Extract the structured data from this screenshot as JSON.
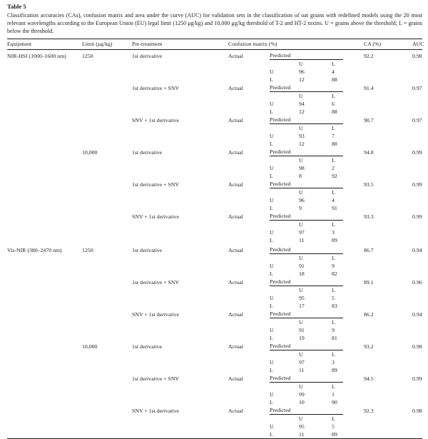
{
  "table": {
    "label": "Table 5",
    "caption": "Classification accuracies (CAs), confusion matrix and area under the curve (AUC) for validation sets in the classification of oat grains with redefined models using the 20 most relevant wavelengths according to the European Union (EU) legal limit (1250 μg/kg) and 10,000 μg/kg threshold of T-2 and HT-2 toxins. U = grains above the threshold; L = grains below the threshold.",
    "headers": {
      "equipment": "Equipment",
      "limit": "Limit (μg/kg)",
      "pretreatment": "Pre-treatment",
      "confusion": "Confusion matrix (%)",
      "ca": "CA (%)",
      "auc": "AUC"
    },
    "actual_label": "Actual",
    "predicted_label": "Predicted",
    "class_labels": [
      "U",
      "L"
    ],
    "blocks": [
      {
        "equipment": "NIR-HSI (1000–1600 nm)",
        "limit": "1250",
        "pretreatment": "1st derivative",
        "matrix": [
          [
            96,
            4
          ],
          [
            12,
            88
          ]
        ],
        "ca": "92.2",
        "auc": "0.98"
      },
      {
        "equipment": "",
        "limit": "",
        "pretreatment": "1st derivative + SNV",
        "matrix": [
          [
            94,
            6
          ],
          [
            12,
            88
          ]
        ],
        "ca": "91.4",
        "auc": "0.97"
      },
      {
        "equipment": "",
        "limit": "",
        "pretreatment": "SNV + 1st derivative",
        "matrix": [
          [
            93,
            7
          ],
          [
            12,
            88
          ]
        ],
        "ca": "90.7",
        "auc": "0.97"
      },
      {
        "equipment": "",
        "limit": "10,000",
        "pretreatment": "1st derivative",
        "matrix": [
          [
            98,
            2
          ],
          [
            8,
            92
          ]
        ],
        "ca": "94.8",
        "auc": "0.99"
      },
      {
        "equipment": "",
        "limit": "",
        "pretreatment": "1st derivative + SNV",
        "matrix": [
          [
            96,
            4
          ],
          [
            9,
            91
          ]
        ],
        "ca": "93.5",
        "auc": "0.99"
      },
      {
        "equipment": "",
        "limit": "",
        "pretreatment": "SNV + 1st derivative",
        "matrix": [
          [
            97,
            3
          ],
          [
            11,
            89
          ]
        ],
        "ca": "93.3",
        "auc": "0.99"
      },
      {
        "equipment": "Vis-NIR (380–2470 nm)",
        "limit": "1250",
        "pretreatment": "1st derivative",
        "matrix": [
          [
            91,
            9
          ],
          [
            18,
            82
          ]
        ],
        "ca": "86.7",
        "auc": "0.94"
      },
      {
        "equipment": "",
        "limit": "",
        "pretreatment": "1st derivative + SNV",
        "matrix": [
          [
            95,
            5
          ],
          [
            17,
            83
          ]
        ],
        "ca": "89.1",
        "auc": "0.96"
      },
      {
        "equipment": "",
        "limit": "",
        "pretreatment": "SNV + 1st derivative",
        "matrix": [
          [
            91,
            9
          ],
          [
            19,
            81
          ]
        ],
        "ca": "86.2",
        "auc": "0.94"
      },
      {
        "equipment": "",
        "limit": "10,000",
        "pretreatment": "1st derivative",
        "matrix": [
          [
            97,
            3
          ],
          [
            11,
            89
          ]
        ],
        "ca": "93.2",
        "auc": "0.98"
      },
      {
        "equipment": "",
        "limit": "",
        "pretreatment": "1st derivative + SNV",
        "matrix": [
          [
            99,
            1
          ],
          [
            10,
            90
          ]
        ],
        "ca": "94.5",
        "auc": "0.99"
      },
      {
        "equipment": "",
        "limit": "",
        "pretreatment": "SNV + 1st derivative",
        "matrix": [
          [
            95,
            5
          ],
          [
            11,
            89
          ]
        ],
        "ca": "92.3",
        "auc": "0.98"
      }
    ]
  }
}
